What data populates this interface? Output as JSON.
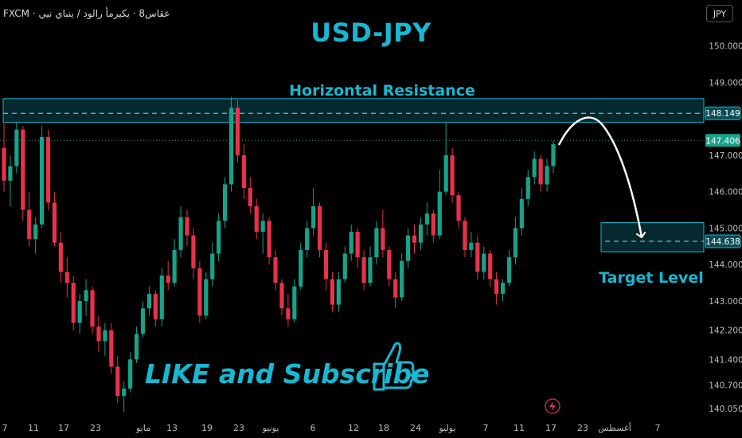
{
  "header": {
    "symbol": "FXCM · عقاس8 · يكيرمأ رالود / ينباي نيي",
    "currency_button": "JPY",
    "title": "USD-JPY"
  },
  "annotations": {
    "resistance_label": "Horizontal Resistance",
    "target_label": "Target Level",
    "cta": "LIKE and Subscribe"
  },
  "colors": {
    "bull": "#16a38a",
    "bear": "#e8314b",
    "accent": "#16b8d2",
    "zone_fill": "#0b4b55"
  },
  "chart_data": {
    "type": "candlestick",
    "ylim": [
      139.9,
      150.6
    ],
    "y_ticks": [
      "150.000",
      "149.000",
      "147.000",
      "146.000",
      "145.000",
      "144.000",
      "143.000",
      "142.200",
      "141.400",
      "140.700",
      "140.050"
    ],
    "y_tick_values": [
      150.0,
      149.0,
      147.0,
      146.0,
      145.0,
      144.0,
      143.0,
      142.2,
      141.4,
      140.7,
      140.05
    ],
    "price_labels": [
      {
        "text": "148.149",
        "value": 148.149
      },
      {
        "text": "147.406",
        "value": 147.406
      },
      {
        "text": "144.638",
        "value": 144.638
      }
    ],
    "x_labels": [
      "7",
      "11",
      "17",
      "23",
      "مايو",
      "13",
      "19",
      "23",
      "يونيو",
      "6",
      "12",
      "18",
      "24",
      "يوليو",
      "7",
      "11",
      "17",
      "23",
      "أغسطس",
      "7"
    ],
    "resistance_zone": [
      147.9,
      148.55
    ],
    "resistance_dashed": 148.149,
    "target_zone": [
      144.35,
      145.15
    ],
    "target_dashed": 144.638,
    "current_price_line": 147.406,
    "candles": [
      [
        147.2,
        147.9,
        146.0,
        146.3
      ],
      [
        146.3,
        147.0,
        145.6,
        146.7
      ],
      [
        146.7,
        147.9,
        146.5,
        147.7
      ],
      [
        147.7,
        147.8,
        145.2,
        145.5
      ],
      [
        145.5,
        146.0,
        144.5,
        144.7
      ],
      [
        144.7,
        145.3,
        144.3,
        145.1
      ],
      [
        145.1,
        147.8,
        145.0,
        147.5
      ],
      [
        147.5,
        147.7,
        145.5,
        145.7
      ],
      [
        145.7,
        146.0,
        144.5,
        144.6
      ],
      [
        144.6,
        144.9,
        143.5,
        143.8
      ],
      [
        143.8,
        144.2,
        143.1,
        143.5
      ],
      [
        143.5,
        143.7,
        142.2,
        142.4
      ],
      [
        142.4,
        143.2,
        142.1,
        143.0
      ],
      [
        143.0,
        143.6,
        142.6,
        143.3
      ],
      [
        143.3,
        143.4,
        142.1,
        142.3
      ],
      [
        142.3,
        142.6,
        141.6,
        141.9
      ],
      [
        141.9,
        142.4,
        141.5,
        142.2
      ],
      [
        142.2,
        142.4,
        141.0,
        141.2
      ],
      [
        141.2,
        141.5,
        140.2,
        140.4
      ],
      [
        140.4,
        140.8,
        139.95,
        140.6
      ],
      [
        140.6,
        141.6,
        140.5,
        141.4
      ],
      [
        141.4,
        142.3,
        141.3,
        142.1
      ],
      [
        142.1,
        143.0,
        142.0,
        142.8
      ],
      [
        142.8,
        143.4,
        142.6,
        143.2
      ],
      [
        143.2,
        143.3,
        142.3,
        142.5
      ],
      [
        142.5,
        143.9,
        142.3,
        143.7
      ],
      [
        143.7,
        144.1,
        143.3,
        143.5
      ],
      [
        143.5,
        144.7,
        143.4,
        144.4
      ],
      [
        144.4,
        145.6,
        144.2,
        145.3
      ],
      [
        145.3,
        145.5,
        144.5,
        144.8
      ],
      [
        144.8,
        145.0,
        143.6,
        143.9
      ],
      [
        143.9,
        144.1,
        142.4,
        142.6
      ],
      [
        142.6,
        143.8,
        142.5,
        143.6
      ],
      [
        143.6,
        144.6,
        143.4,
        144.3
      ],
      [
        144.3,
        145.4,
        144.1,
        145.2
      ],
      [
        145.2,
        146.4,
        145.0,
        146.2
      ],
      [
        146.2,
        148.6,
        146.0,
        148.3
      ],
      [
        148.3,
        148.5,
        146.8,
        147.0
      ],
      [
        147.0,
        147.3,
        145.8,
        146.1
      ],
      [
        146.1,
        146.4,
        145.4,
        145.6
      ],
      [
        145.6,
        145.8,
        144.7,
        144.9
      ],
      [
        144.9,
        145.4,
        144.3,
        145.2
      ],
      [
        145.2,
        145.3,
        144.0,
        144.2
      ],
      [
        144.2,
        144.4,
        143.3,
        143.5
      ],
      [
        143.5,
        143.6,
        142.6,
        142.8
      ],
      [
        142.8,
        143.2,
        142.3,
        142.5
      ],
      [
        142.5,
        143.6,
        142.4,
        143.4
      ],
      [
        143.4,
        144.6,
        143.3,
        144.4
      ],
      [
        144.4,
        145.2,
        144.2,
        145.0
      ],
      [
        145.0,
        146.1,
        144.8,
        145.6
      ],
      [
        145.6,
        145.7,
        144.2,
        144.4
      ],
      [
        144.4,
        144.6,
        143.3,
        143.6
      ],
      [
        143.6,
        143.8,
        142.7,
        142.9
      ],
      [
        142.9,
        143.8,
        142.7,
        143.6
      ],
      [
        143.6,
        144.5,
        143.5,
        144.3
      ],
      [
        144.3,
        145.1,
        144.1,
        144.9
      ],
      [
        144.9,
        145.0,
        143.9,
        144.2
      ],
      [
        144.2,
        144.4,
        143.3,
        143.5
      ],
      [
        143.5,
        144.5,
        143.4,
        144.2
      ],
      [
        144.2,
        145.2,
        144.0,
        145.0
      ],
      [
        145.0,
        145.5,
        144.2,
        144.4
      ],
      [
        144.4,
        144.5,
        143.4,
        143.6
      ],
      [
        143.6,
        143.8,
        142.8,
        143.1
      ],
      [
        143.1,
        144.3,
        143.0,
        144.1
      ],
      [
        144.1,
        145.0,
        143.9,
        144.8
      ],
      [
        144.8,
        145.1,
        144.3,
        144.6
      ],
      [
        144.6,
        145.3,
        144.4,
        145.1
      ],
      [
        145.1,
        145.7,
        144.8,
        145.4
      ],
      [
        145.4,
        145.5,
        144.6,
        144.8
      ],
      [
        144.8,
        146.6,
        144.7,
        146.0
      ],
      [
        146.0,
        147.9,
        145.9,
        147.0
      ],
      [
        147.0,
        147.2,
        145.7,
        145.9
      ],
      [
        145.9,
        146.0,
        145.0,
        145.2
      ],
      [
        145.2,
        145.3,
        144.2,
        144.4
      ],
      [
        144.4,
        144.9,
        144.2,
        144.6
      ],
      [
        144.6,
        144.8,
        143.6,
        143.8
      ],
      [
        143.8,
        144.5,
        143.6,
        144.3
      ],
      [
        144.3,
        144.4,
        143.4,
        143.6
      ],
      [
        143.6,
        143.8,
        142.9,
        143.2
      ],
      [
        143.2,
        143.6,
        143.0,
        143.5
      ],
      [
        143.5,
        144.4,
        143.4,
        144.2
      ],
      [
        144.2,
        145.3,
        144.0,
        145.0
      ],
      [
        145.0,
        146.1,
        144.8,
        145.8
      ],
      [
        145.8,
        146.6,
        145.6,
        146.4
      ],
      [
        146.4,
        147.1,
        146.2,
        146.9
      ],
      [
        146.9,
        147.0,
        146.0,
        146.2
      ],
      [
        146.2,
        146.9,
        146.0,
        146.7
      ],
      [
        146.7,
        147.4,
        146.5,
        147.3
      ]
    ]
  }
}
